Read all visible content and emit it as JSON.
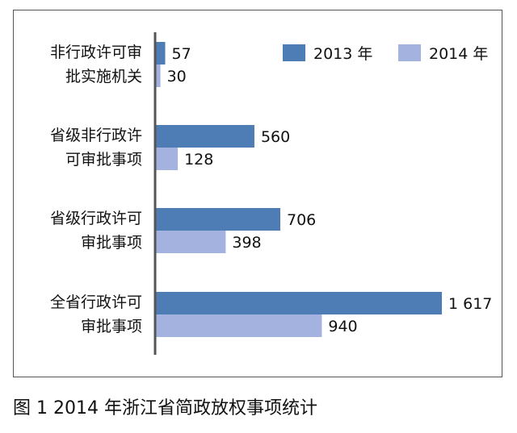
{
  "chart_data": {
    "type": "bar",
    "orientation": "horizontal",
    "categories": [
      [
        "非行政许可审",
        "批实施机关"
      ],
      [
        "省级非行政许",
        "可审批事项"
      ],
      [
        "省级行政许可",
        "审批事项"
      ],
      [
        "全省行政许可",
        "审批事项"
      ]
    ],
    "series": [
      {
        "name": "2013 年",
        "values": [
          57,
          560,
          706,
          1617
        ],
        "labels": [
          "57",
          "560",
          "706",
          "1 617"
        ],
        "color": "#4e7db6"
      },
      {
        "name": "2014 年",
        "values": [
          30,
          128,
          398,
          940
        ],
        "labels": [
          "30",
          "128",
          "398",
          "940"
        ],
        "color": "#a3b2de"
      }
    ],
    "xlim": [
      0,
      1617
    ],
    "legend_position": "top-right",
    "grid": false
  },
  "caption": "图 1 2014 年浙江省简政放权事项统计"
}
